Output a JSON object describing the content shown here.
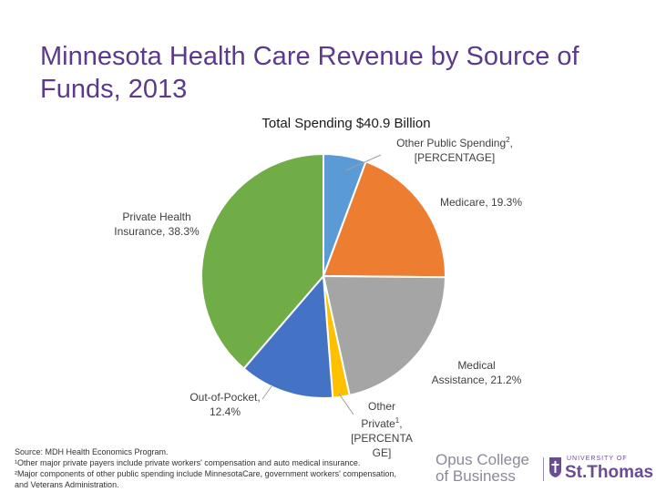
{
  "slide": {
    "title": "Minnesota Health Care Revenue by Source of Funds, 2013"
  },
  "chart_data": {
    "type": "pie",
    "title": "Total Spending $40.9 Billion",
    "slices": [
      {
        "name": "Other Public Spending²",
        "label_name": "Other Public Spending",
        "sup": "2",
        "label_value": "[PERCENTAGE]",
        "value": 5.6,
        "color": "#5b9bd5"
      },
      {
        "name": "Medicare",
        "label_value": "19.3%",
        "value": 19.3,
        "color": "#ed7d31"
      },
      {
        "name": "Medical Assistance",
        "label_value": "21.2%",
        "value": 21.2,
        "color": "#a5a5a5"
      },
      {
        "name": "Other Private¹",
        "label_name": "Other Private",
        "sup": "1",
        "label_value": "[PERCENTAGE]",
        "value": 2.2,
        "color": "#ffc000"
      },
      {
        "name": "Out-of-Pocket",
        "label_value": "12.4%",
        "value": 12.4,
        "color": "#4472c4"
      },
      {
        "name": "Private Health Insurance",
        "label_value": "38.3%",
        "value": 38.3,
        "color": "#70ad47"
      }
    ]
  },
  "labels": {
    "other_public_line1": "Other Public Spending",
    "other_public_sup": "2",
    "other_public_line2": "[PERCENTAGE]",
    "medicare": "Medicare, 19.3%",
    "private_line1": "Private Health",
    "private_line2": "Insurance, 38.3%",
    "medical_line1": "Medical",
    "medical_line2": "Assistance, 21.2%",
    "oop_line1": "Out-of-Pocket,",
    "oop_line2": "12.4%",
    "other_private_line1": "Other",
    "other_private_line2": "Private",
    "other_private_sup": "1",
    "other_private_line3": "[PERCENTA",
    "other_private_line4": "GE]"
  },
  "footnotes": {
    "source": "Source: MDH Health Economics Program.",
    "note1": "¹Other major private payers include private workers' compensation and auto medical insurance.",
    "note2": "²Major components of other public spending include MinnesotaCare, government workers' compensation,",
    "note3": "and Veterans Administration."
  },
  "logos": {
    "opus_line1": "Opus College",
    "opus_line2": "of Business",
    "ust_small": "UNIVERSITY OF",
    "ust_big": "St.Thomas"
  }
}
